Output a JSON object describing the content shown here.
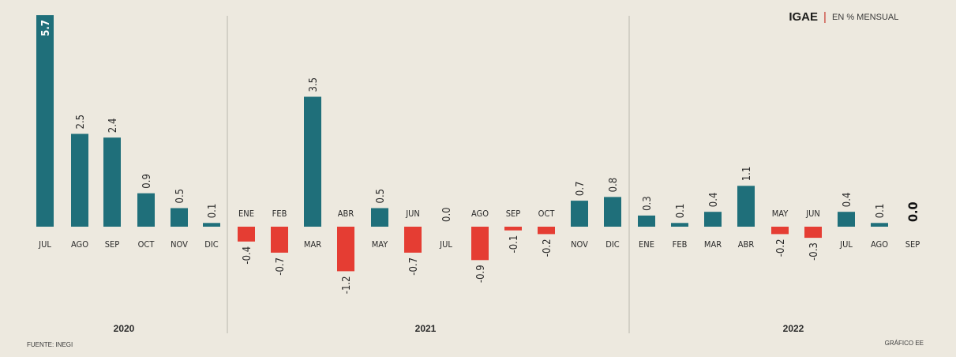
{
  "header": {
    "title": "IGAE",
    "separator": "|",
    "subtitle": "EN % MENSUAL"
  },
  "footer": {
    "source": "FUENTE: INEGI",
    "credit": "GRÁFICO EE"
  },
  "colors": {
    "positive": "#1f6f7a",
    "negative": "#e53d33",
    "background": "#ede9df",
    "divider": "#b9b6ae"
  },
  "chart_data": {
    "type": "bar",
    "title": "IGAE",
    "subtitle": "EN % MENSUAL",
    "xlabel": "",
    "ylabel": "",
    "ylim": [
      -1.2,
      5.7
    ],
    "grid": false,
    "years": [
      "2020",
      "2021",
      "2022"
    ],
    "categories": [
      "JUL",
      "AGO",
      "SEP",
      "OCT",
      "NOV",
      "DIC",
      "ENE",
      "FEB",
      "MAR",
      "ABR",
      "MAY",
      "JUN",
      "JUL",
      "AGO",
      "SEP",
      "OCT",
      "NOV",
      "DIC",
      "ENE",
      "FEB",
      "MAR",
      "ABR",
      "MAY",
      "JUN",
      "JUL",
      "AGO",
      "SEP"
    ],
    "year_of_category": [
      "2020",
      "2020",
      "2020",
      "2020",
      "2020",
      "2020",
      "2021",
      "2021",
      "2021",
      "2021",
      "2021",
      "2021",
      "2021",
      "2021",
      "2021",
      "2021",
      "2021",
      "2021",
      "2022",
      "2022",
      "2022",
      "2022",
      "2022",
      "2022",
      "2022",
      "2022",
      "2022"
    ],
    "values": [
      5.7,
      2.5,
      2.4,
      0.9,
      0.5,
      0.1,
      -0.4,
      -0.7,
      3.5,
      -1.2,
      0.5,
      -0.7,
      0.0,
      -0.9,
      -0.1,
      -0.2,
      0.7,
      0.8,
      0.3,
      0.1,
      0.4,
      1.1,
      -0.2,
      -0.3,
      0.4,
      0.1,
      0.0
    ],
    "value_labels": [
      "5.7",
      "2.5",
      "2.4",
      "0.9",
      "0.5",
      "0.1",
      "-0.4",
      "-0.7",
      "3.5",
      "-1.2",
      "0.5",
      "-0.7",
      "0.0",
      "-0.9",
      "-0.1",
      "-0.2",
      "0.7",
      "0.8",
      "0.3",
      "0.1",
      "0.4",
      "1.1",
      "-0.2",
      "-0.3",
      "0.4",
      "0.1",
      "0.0"
    ]
  }
}
